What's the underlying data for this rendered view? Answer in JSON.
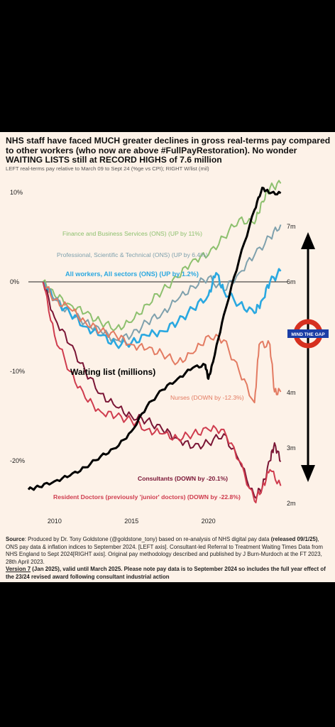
{
  "title": "NHS staff have faced MUCH greater declines in gross real-terms pay compared to other workers (who now are above #FullPayRestoration). No wonder WAITING LISTS still at RECORD HIGHS of 7.6 million",
  "subtitle": "LEFT real-terms pay relative to March 09 to Sept 24 (%ge vs CPI); RIGHT W/list (mil)",
  "footer": {
    "source_label": "Source",
    "source_text": ": Produced by Dr. Tony Goldstone (@goldstone_tony) based on re-analysis of NHS digital pay data ",
    "released": "(released 09/1/25)",
    "rest": ", ONS pay data & inflation indices to September 2024. [LEFT axis]. Consultant-led Referral to Treatment Waiting Times Data from NHS England to Sept 2024[RIGHT axis]. Original pay methodology described and published by J Burn-Murdoch at the FT 2023, 28th April 2023.",
    "version": "Version 7",
    "version_rest": " (Jan 2025), valid until March 2025. Please note pay data is to September 2024 so includes the full year effect of the 23/24 revised award following consultant industrial action"
  },
  "colors": {
    "finance": "#8dc06e",
    "professional": "#7fa1ad",
    "all_workers": "#2aa8e0",
    "nurses": "#e37b62",
    "consultants": "#7a1535",
    "resident": "#cf3c4e",
    "waiting": "#000000"
  },
  "chart_data": {
    "type": "line",
    "x_ticks": [
      "2010",
      "2015",
      "2020"
    ],
    "y_left_ticks": [
      "10%",
      "0%",
      "-10%",
      "-20%"
    ],
    "y_left_values": [
      10,
      0,
      -10,
      -20
    ],
    "y_right_ticks": [
      "7m",
      "6m",
      "4m",
      "3m",
      "2m"
    ],
    "y_right_values": [
      7,
      6,
      4,
      3,
      2
    ],
    "mind_the_gap": "MIND THE GAP",
    "series": [
      {
        "name": "Finance and Business Services (ONS) (UP by 11%)",
        "key": "finance",
        "axis": "left",
        "points": [
          [
            2009.25,
            0
          ],
          [
            2010,
            -1.5
          ],
          [
            2011,
            -2.5
          ],
          [
            2012,
            -3.5
          ],
          [
            2013,
            -4.5
          ],
          [
            2014,
            -5.2
          ],
          [
            2015,
            -4.5
          ],
          [
            2016,
            -2.5
          ],
          [
            2017,
            -1
          ],
          [
            2018,
            0.5
          ],
          [
            2019,
            2.5
          ],
          [
            2020,
            3
          ],
          [
            2021,
            5
          ],
          [
            2022,
            7
          ],
          [
            2023,
            6.5
          ],
          [
            2023.5,
            9
          ],
          [
            2024,
            10.5
          ],
          [
            2024.7,
            11
          ]
        ]
      },
      {
        "name": "Professional, Scientific & Technical (ONS) (UP by 6.4%)",
        "key": "professional",
        "axis": "left",
        "points": [
          [
            2009.25,
            0
          ],
          [
            2010,
            -2
          ],
          [
            2011,
            -3.5
          ],
          [
            2012,
            -4.5
          ],
          [
            2013,
            -5.5
          ],
          [
            2014,
            -6.5
          ],
          [
            2015,
            -6
          ],
          [
            2016,
            -4.5
          ],
          [
            2017,
            -3.5
          ],
          [
            2018,
            -2
          ],
          [
            2019,
            -0.5
          ],
          [
            2020,
            0.5
          ],
          [
            2021,
            -1
          ],
          [
            2022,
            1
          ],
          [
            2023,
            3
          ],
          [
            2024,
            5
          ],
          [
            2024.7,
            6.4
          ]
        ]
      },
      {
        "name": "All workers, All sectors (ONS) (UP by 1.2%)",
        "key": "all_workers",
        "axis": "left",
        "points": [
          [
            2009.25,
            0
          ],
          [
            2010,
            -2
          ],
          [
            2011,
            -3.5
          ],
          [
            2012,
            -5
          ],
          [
            2013,
            -6
          ],
          [
            2014,
            -7
          ],
          [
            2015,
            -6.8
          ],
          [
            2016,
            -6
          ],
          [
            2017,
            -5.5
          ],
          [
            2018,
            -4.5
          ],
          [
            2019,
            -3
          ],
          [
            2020,
            -1.5
          ],
          [
            2020.5,
            1
          ],
          [
            2021,
            -1
          ],
          [
            2022,
            -2.5
          ],
          [
            2023,
            -3.5
          ],
          [
            2023.5,
            -2
          ],
          [
            2024,
            0
          ],
          [
            2024.7,
            1.2
          ]
        ]
      },
      {
        "name": "Nurses (DOWN by -12.3%)",
        "key": "nurses",
        "axis": "left",
        "points": [
          [
            2009.25,
            0
          ],
          [
            2010,
            -2
          ],
          [
            2011,
            -3
          ],
          [
            2012,
            -4.5
          ],
          [
            2013,
            -5.5
          ],
          [
            2014,
            -6
          ],
          [
            2015,
            -7
          ],
          [
            2016,
            -7.5
          ],
          [
            2017,
            -8
          ],
          [
            2018,
            -9
          ],
          [
            2019,
            -8
          ],
          [
            2020,
            -6
          ],
          [
            2021,
            -6.5
          ],
          [
            2022,
            -10
          ],
          [
            2023,
            -13.5
          ],
          [
            2023.3,
            -7
          ],
          [
            2024,
            -7
          ],
          [
            2024.3,
            -12.3
          ],
          [
            2024.7,
            -12.3
          ]
        ]
      },
      {
        "name": "Consultants (DOWN by -20.1%)",
        "key": "consultants",
        "axis": "left",
        "points": [
          [
            2009.25,
            0
          ],
          [
            2010,
            -4
          ],
          [
            2011,
            -7
          ],
          [
            2012,
            -10
          ],
          [
            2013,
            -12.5
          ],
          [
            2014,
            -14
          ],
          [
            2015,
            -15
          ],
          [
            2016,
            -15.5
          ],
          [
            2017,
            -16.5
          ],
          [
            2018,
            -17.5
          ],
          [
            2019,
            -18.5
          ],
          [
            2020,
            -18
          ],
          [
            2021,
            -17
          ],
          [
            2022,
            -20
          ],
          [
            2023,
            -24
          ],
          [
            2023.5,
            -23
          ],
          [
            2024,
            -20
          ],
          [
            2024.3,
            -18
          ],
          [
            2024.7,
            -20.1
          ]
        ]
      },
      {
        "name": "Resident Doctors (previously 'junior' doctors) (DOWN by -22.8%)",
        "key": "resident",
        "axis": "left",
        "points": [
          [
            2009.25,
            0
          ],
          [
            2010,
            -6
          ],
          [
            2011,
            -10
          ],
          [
            2012,
            -13
          ],
          [
            2013,
            -14.5
          ],
          [
            2014,
            -15
          ],
          [
            2015,
            -15.5
          ],
          [
            2016,
            -16.5
          ],
          [
            2017,
            -17
          ],
          [
            2018,
            -17.5
          ],
          [
            2019,
            -17
          ],
          [
            2020,
            -16.5
          ],
          [
            2021,
            -16.5
          ],
          [
            2022,
            -20
          ],
          [
            2023,
            -24.5
          ],
          [
            2023.5,
            -23
          ],
          [
            2024,
            -21
          ],
          [
            2024.7,
            -22.8
          ]
        ]
      },
      {
        "name": "Waiting list (millions)",
        "key": "waiting",
        "axis": "right",
        "points": [
          [
            2008.3,
            2.25
          ],
          [
            2009,
            2.3
          ],
          [
            2010,
            2.4
          ],
          [
            2011,
            2.5
          ],
          [
            2012,
            2.65
          ],
          [
            2013,
            2.85
          ],
          [
            2014,
            3.0
          ],
          [
            2015,
            3.3
          ],
          [
            2016,
            3.75
          ],
          [
            2017,
            4.05
          ],
          [
            2018,
            4.25
          ],
          [
            2019,
            4.45
          ],
          [
            2019.8,
            4.5
          ],
          [
            2020,
            4.25
          ],
          [
            2020.3,
            4.55
          ],
          [
            2021,
            5.4
          ],
          [
            2022,
            6.4
          ],
          [
            2023,
            7.3
          ],
          [
            2023.5,
            7.7
          ],
          [
            2024,
            7.6
          ],
          [
            2024.7,
            7.6
          ]
        ]
      }
    ]
  }
}
